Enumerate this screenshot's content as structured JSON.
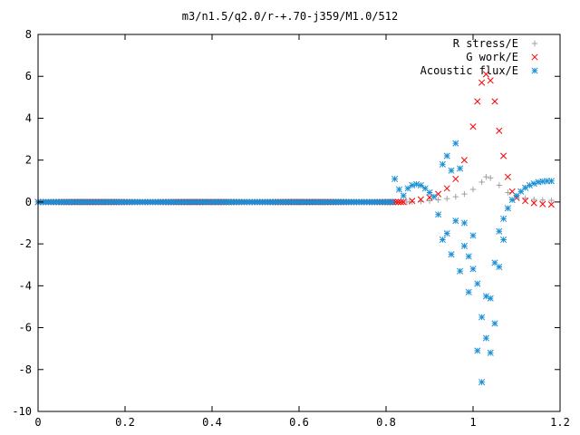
{
  "chart_data": {
    "type": "scatter",
    "title": "m3/n1.5/q2.0/r-+.70-j359/M1.0/512",
    "xlabel": "",
    "ylabel": "",
    "xlim": [
      0,
      1.2
    ],
    "ylim": [
      -10,
      8
    ],
    "x_ticks": [
      "0",
      "0.2",
      "0.4",
      "0.6",
      "0.8",
      "1",
      "1.2"
    ],
    "y_ticks": [
      "-10",
      "-8",
      "-6",
      "-4",
      "-2",
      "0",
      "2",
      "4",
      "6",
      "8"
    ],
    "grid": false,
    "legend_position": "top-right",
    "series": [
      {
        "name": "R stress/E",
        "marker": "+",
        "color": "#a0a0a0",
        "points": [
          [
            0.86,
            0.01
          ],
          [
            0.88,
            0.03
          ],
          [
            0.9,
            0.06
          ],
          [
            0.92,
            0.1
          ],
          [
            0.94,
            0.16
          ],
          [
            0.96,
            0.25
          ],
          [
            0.98,
            0.38
          ],
          [
            1.0,
            0.6
          ],
          [
            1.02,
            0.95
          ],
          [
            1.03,
            1.2
          ],
          [
            1.04,
            1.15
          ],
          [
            1.06,
            0.8
          ],
          [
            1.08,
            0.45
          ],
          [
            1.1,
            0.28
          ],
          [
            1.12,
            0.18
          ],
          [
            1.14,
            0.12
          ],
          [
            1.16,
            0.09
          ],
          [
            1.18,
            0.08
          ]
        ]
      },
      {
        "name": "G work/E",
        "marker": "x",
        "color": "#ff0000",
        "points": [
          [
            0.84,
            0.0
          ],
          [
            0.86,
            0.05
          ],
          [
            0.88,
            0.12
          ],
          [
            0.9,
            0.22
          ],
          [
            0.92,
            0.38
          ],
          [
            0.94,
            0.65
          ],
          [
            0.96,
            1.1
          ],
          [
            0.98,
            2.0
          ],
          [
            1.0,
            3.6
          ],
          [
            1.01,
            4.8
          ],
          [
            1.02,
            5.7
          ],
          [
            1.03,
            6.1
          ],
          [
            1.04,
            5.8
          ],
          [
            1.05,
            4.8
          ],
          [
            1.06,
            3.4
          ],
          [
            1.07,
            2.2
          ],
          [
            1.08,
            1.2
          ],
          [
            1.09,
            0.5
          ],
          [
            1.1,
            0.2
          ],
          [
            1.12,
            0.05
          ],
          [
            1.14,
            -0.05
          ],
          [
            1.16,
            -0.1
          ],
          [
            1.18,
            -0.12
          ]
        ]
      },
      {
        "name": "Acoustic flux/E",
        "marker": "*",
        "color": "#1a8fd6",
        "points": [
          [
            0.82,
            1.1
          ],
          [
            0.83,
            0.6
          ],
          [
            0.84,
            0.3
          ],
          [
            0.85,
            0.65
          ],
          [
            0.86,
            0.8
          ],
          [
            0.87,
            0.85
          ],
          [
            0.88,
            0.8
          ],
          [
            0.89,
            0.65
          ],
          [
            0.9,
            0.45
          ],
          [
            0.91,
            0.25
          ],
          [
            0.92,
            -0.6
          ],
          [
            0.93,
            1.8
          ],
          [
            0.93,
            -1.8
          ],
          [
            0.94,
            2.2
          ],
          [
            0.94,
            -1.5
          ],
          [
            0.95,
            1.5
          ],
          [
            0.95,
            -2.5
          ],
          [
            0.96,
            2.8
          ],
          [
            0.96,
            -0.9
          ],
          [
            0.97,
            1.6
          ],
          [
            0.97,
            -3.3
          ],
          [
            0.98,
            -1.0
          ],
          [
            0.98,
            -2.1
          ],
          [
            0.99,
            -4.3
          ],
          [
            0.99,
            -2.6
          ],
          [
            1.0,
            -3.2
          ],
          [
            1.0,
            -1.6
          ],
          [
            1.01,
            -7.1
          ],
          [
            1.01,
            -3.9
          ],
          [
            1.02,
            -8.6
          ],
          [
            1.02,
            -5.5
          ],
          [
            1.03,
            -4.5
          ],
          [
            1.03,
            -6.5
          ],
          [
            1.04,
            -4.6
          ],
          [
            1.04,
            -7.2
          ],
          [
            1.05,
            -2.9
          ],
          [
            1.05,
            -5.8
          ],
          [
            1.06,
            -1.4
          ],
          [
            1.06,
            -3.1
          ],
          [
            1.07,
            -0.8
          ],
          [
            1.07,
            -1.8
          ],
          [
            1.08,
            -0.3
          ],
          [
            1.09,
            0.1
          ],
          [
            1.1,
            0.3
          ],
          [
            1.11,
            0.5
          ],
          [
            1.12,
            0.68
          ],
          [
            1.13,
            0.8
          ],
          [
            1.14,
            0.88
          ],
          [
            1.15,
            0.95
          ],
          [
            1.16,
            0.98
          ],
          [
            1.17,
            1.0
          ],
          [
            1.18,
            1.0
          ]
        ]
      }
    ]
  }
}
